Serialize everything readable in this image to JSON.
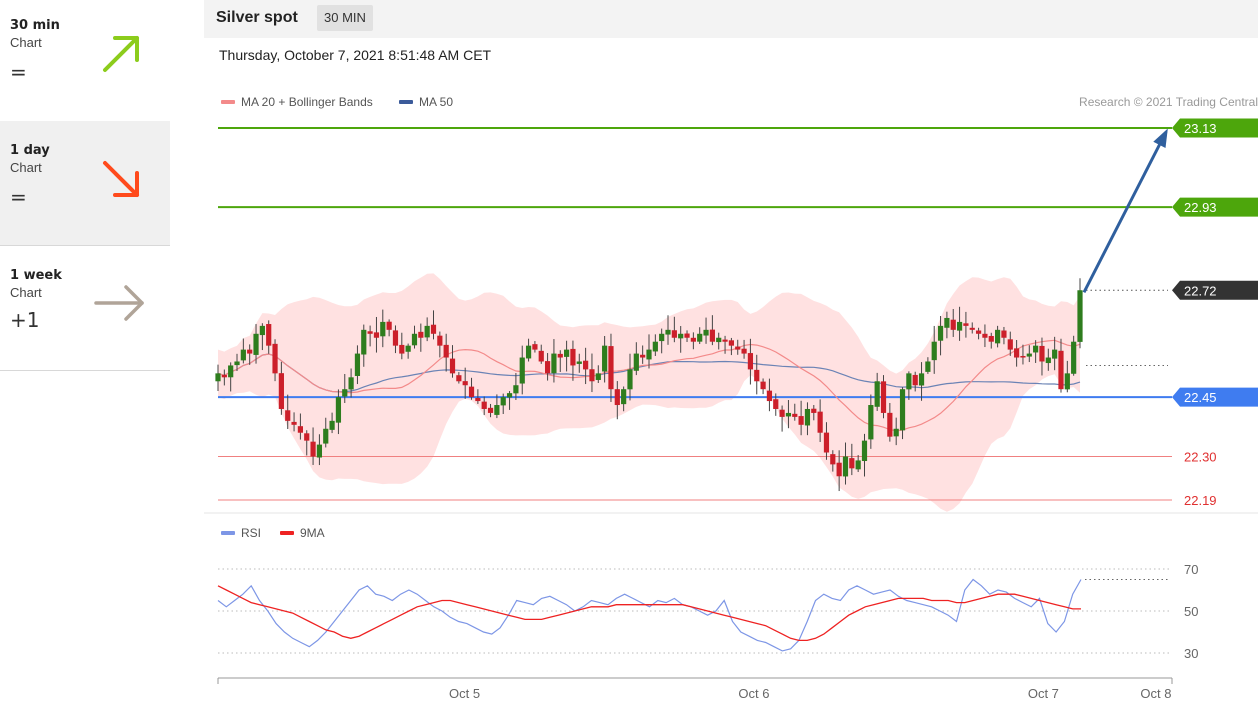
{
  "sidebar": {
    "items": [
      {
        "name": "30 min",
        "label": "Chart",
        "symbol": "=",
        "arrow": "arrow-up-right-icon",
        "color": "#8ccc1c"
      },
      {
        "name": "1 day",
        "label": "Chart",
        "symbol": "=",
        "arrow": "arrow-down-right-icon",
        "color": "#ff4a1c"
      },
      {
        "name": "1 week",
        "label": "Chart",
        "symbol": "+1",
        "arrow": "arrow-right-icon",
        "color": "#b0a498"
      }
    ]
  },
  "header": {
    "title": "Silver spot",
    "timeframe": "30 MIN",
    "date": "Thursday, October 7, 2021 8:51:48 AM CET",
    "credit": "Research © 2021 Trading Central"
  },
  "legend": {
    "ma20": "MA 20 + Bollinger Bands",
    "ma50": "MA 50",
    "rsi": "RSI",
    "ma9": "9MA"
  },
  "colors": {
    "up": "#2e7d1e",
    "down": "#cc1f2a",
    "resistance": "#4da60c",
    "support": "#3f7cf0",
    "minor_support": "#f08080",
    "current": "#333333",
    "arrow": "#2f5f9e",
    "bollinger": "#ffdada",
    "ma20": "#f38a8a",
    "ma50": "#6b83b5",
    "rsi": "#7d96e6",
    "ma9": "#ee2222"
  },
  "chart_data": {
    "type": "candlestick",
    "price_range": [
      22.17,
      23.17
    ],
    "levels": [
      {
        "value": 23.13,
        "label": "23.13",
        "kind": "resistance"
      },
      {
        "value": 22.93,
        "label": "22.93",
        "kind": "resistance"
      },
      {
        "value": 22.72,
        "label": "22.72",
        "kind": "current"
      },
      {
        "value": 22.45,
        "label": "22.45",
        "kind": "support"
      },
      {
        "value": 22.3,
        "label": "22.30",
        "kind": "minor_support"
      },
      {
        "value": 22.19,
        "label": "22.19",
        "kind": "minor_support"
      }
    ],
    "x_ticks": [
      {
        "label": "Oct 5",
        "index": 46
      },
      {
        "label": "Oct 6",
        "index": 100
      },
      {
        "label": "Oct 7",
        "index": 154
      },
      {
        "label": "Oct 8",
        "index": 175
      }
    ],
    "rsi_ticks": [
      30,
      50,
      70
    ],
    "rsi_range": [
      20,
      80
    ],
    "close": [
      22.51,
      22.5,
      22.53,
      22.54,
      22.57,
      22.56,
      22.61,
      22.63,
      22.58,
      22.51,
      22.42,
      22.39,
      22.38,
      22.36,
      22.34,
      22.3,
      22.33,
      22.37,
      22.39,
      22.45,
      22.47,
      22.5,
      22.56,
      22.62,
      22.61,
      22.6,
      22.64,
      22.62,
      22.58,
      22.56,
      22.58,
      22.61,
      22.6,
      22.63,
      22.61,
      22.58,
      22.55,
      22.51,
      22.49,
      22.48,
      22.45,
      22.44,
      22.42,
      22.41,
      22.43,
      22.45,
      22.46,
      22.48,
      22.55,
      22.58,
      22.57,
      22.54,
      22.51,
      22.56,
      22.55,
      22.57,
      22.53,
      22.54,
      22.52,
      22.49,
      22.51,
      22.58,
      22.47,
      22.43,
      22.47,
      22.52,
      22.56,
      22.55,
      22.57,
      22.59,
      22.61,
      22.62,
      22.6,
      22.61,
      22.6,
      22.59,
      22.61,
      22.62,
      22.59,
      22.6,
      22.59,
      22.58,
      22.57,
      22.56,
      22.52,
      22.49,
      22.47,
      22.44,
      22.42,
      22.4,
      22.41,
      22.4,
      22.38,
      22.42,
      22.41,
      22.36,
      22.31,
      22.28,
      22.25,
      22.3,
      22.27,
      22.29,
      22.34,
      22.43,
      22.49,
      22.41,
      22.35,
      22.37,
      22.47,
      22.51,
      22.48,
      22.51,
      22.54,
      22.59,
      22.63,
      22.65,
      22.62,
      22.64,
      22.63,
      22.62,
      22.61,
      22.6,
      22.59,
      22.62,
      22.6,
      22.57,
      22.55,
      22.55,
      22.56,
      22.58,
      22.54,
      22.55,
      22.57,
      22.47,
      22.51,
      22.59,
      22.72
    ],
    "rsi": [
      55,
      52,
      55,
      58,
      62,
      55,
      50,
      44,
      40,
      37,
      35,
      33,
      36,
      40,
      45,
      50,
      55,
      60,
      62,
      58,
      57,
      55,
      58,
      60,
      58,
      55,
      52,
      50,
      47,
      45,
      44,
      42,
      40,
      39,
      42,
      48,
      55,
      54,
      53,
      56,
      57,
      55,
      53,
      50,
      52,
      55,
      54,
      53,
      56,
      58,
      56,
      54,
      52,
      55,
      54,
      56,
      53,
      52,
      50,
      48,
      50,
      55,
      45,
      40,
      38,
      36,
      35,
      33,
      31,
      32,
      36,
      45,
      55,
      58,
      56,
      55,
      60,
      62,
      60,
      58,
      59,
      60,
      57,
      55,
      54,
      53,
      52,
      50,
      48,
      45,
      60,
      65,
      62,
      58,
      60,
      59,
      56,
      54,
      52,
      56,
      44,
      40,
      45,
      58,
      65
    ],
    "ma9": [
      62,
      60,
      58,
      56,
      54,
      53,
      52,
      51,
      50,
      49,
      47,
      45,
      43,
      41,
      40,
      38,
      37,
      38,
      40,
      42,
      44,
      46,
      48,
      50,
      52,
      53,
      54,
      55,
      55,
      54,
      53,
      52,
      51,
      50,
      49,
      48,
      47,
      46,
      46,
      46,
      47,
      48,
      49,
      50,
      51,
      52,
      52,
      52,
      53,
      53,
      53,
      53,
      53,
      53,
      53,
      53,
      53,
      52,
      51,
      50,
      49,
      48,
      47,
      46,
      45,
      44,
      43,
      41,
      39,
      37,
      36,
      36,
      37,
      39,
      42,
      45,
      48,
      50,
      52,
      53,
      54,
      55,
      56,
      56,
      56,
      56,
      55,
      55,
      55,
      54,
      54,
      55,
      56,
      57,
      58,
      58,
      58,
      57,
      56,
      55,
      54,
      53,
      52,
      51,
      51
    ]
  }
}
